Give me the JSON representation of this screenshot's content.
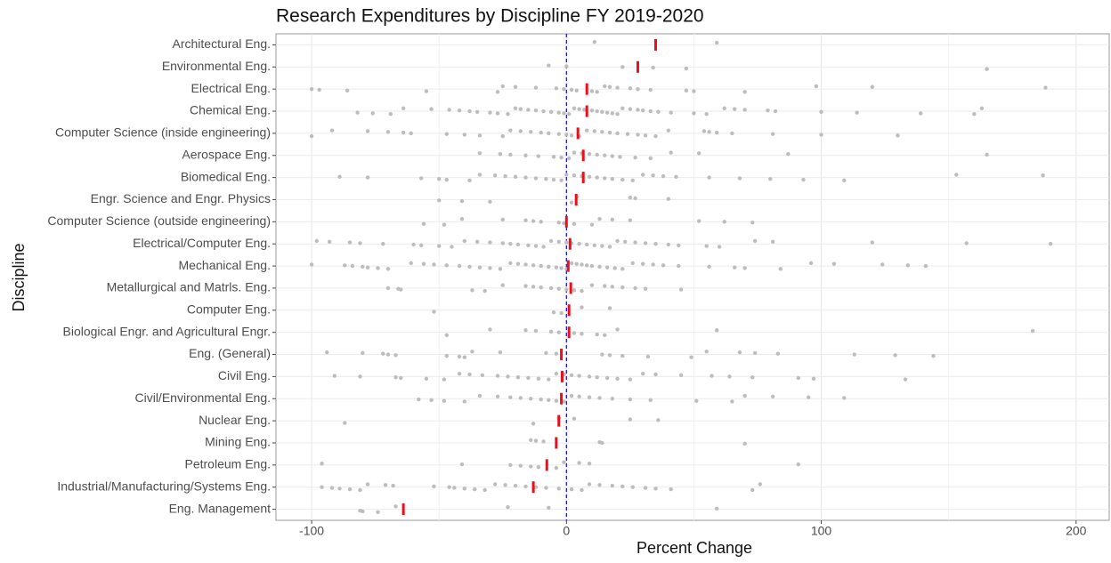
{
  "chart_data": {
    "type": "strip",
    "title": "Research Expenditures by Discipline FY 2019-2020",
    "x_label": "Percent Change",
    "y_label": "Discipline",
    "categories": [
      "Architectural Eng.",
      "Environmental Eng.",
      "Electrical Eng.",
      "Chemical Eng.",
      "Computer Science (inside engineering)",
      "Aerospace Eng.",
      "Biomedical Eng.",
      "Engr. Science and Engr. Physics",
      "Computer Science (outside engineering)",
      "Electrical/Computer Eng.",
      "Mechanical Eng.",
      "Metallurgical and Matrls. Eng.",
      "Computer Eng.",
      "Biological Engr. and Agricultural Engr.",
      "Eng. (General)",
      "Civil Eng.",
      "Civil/Environmental Eng.",
      "Nuclear Eng.",
      "Mining Eng.",
      "Petroleum Eng.",
      "Industrial/Manufacturing/Systems Eng.",
      "Eng. Management"
    ],
    "points": [
      [
        11,
        59
      ],
      [
        -7,
        0,
        22,
        34,
        47,
        165
      ],
      [
        -100,
        -97,
        -86,
        -55,
        -27,
        -25,
        -20,
        -12,
        -4,
        -1,
        2,
        4,
        10,
        12,
        15,
        17,
        20,
        25,
        28,
        33,
        47,
        50,
        70,
        98,
        120,
        188
      ],
      [
        -82,
        -76,
        -69,
        -64,
        -53,
        -46,
        -42,
        -38,
        -35,
        -30,
        -27,
        -23,
        -20,
        -18,
        -15,
        -12,
        -9,
        -6,
        -3,
        -1,
        1,
        3,
        5,
        7,
        10,
        12,
        14,
        16,
        18,
        20,
        22,
        25,
        28,
        30,
        33,
        36,
        41,
        50,
        55,
        62,
        66,
        70,
        79,
        82,
        100,
        114,
        139,
        160,
        163
      ],
      [
        -100,
        -92,
        -78,
        -70,
        -64,
        -61,
        -47,
        -40,
        -34,
        -25,
        -22,
        -18,
        -14,
        -10,
        -7,
        -3,
        0,
        2,
        5,
        8,
        11,
        14,
        17,
        20,
        24,
        28,
        31,
        35,
        40,
        54,
        56,
        59,
        65,
        81,
        100,
        130
      ],
      [
        -34,
        -26,
        -22,
        -16,
        -11,
        -5,
        -2,
        1,
        3,
        6,
        9,
        12,
        15,
        18,
        21,
        27,
        33,
        41,
        52,
        87,
        165
      ],
      [
        -89,
        -78,
        -57,
        -50,
        -47,
        -38,
        -34,
        -28,
        -24,
        -20,
        -16,
        -12,
        -8,
        -5,
        -2,
        0,
        3,
        6,
        9,
        12,
        15,
        18,
        22,
        26,
        30,
        34,
        38,
        43,
        56,
        68,
        80,
        93,
        109,
        153,
        187
      ],
      [
        -50,
        -41,
        -30,
        2,
        4,
        25,
        27,
        40
      ],
      [
        -56,
        -48,
        -41,
        -25,
        -16,
        -13,
        -10,
        -3,
        -1,
        3,
        10,
        13,
        18,
        25,
        52,
        62,
        73
      ],
      [
        -98,
        -93,
        -85,
        -81,
        -72,
        -60,
        -57,
        -50,
        -45,
        -40,
        -35,
        -30,
        -25,
        -22,
        -19,
        -15,
        -12,
        -9,
        -6,
        -3,
        0,
        2,
        5,
        8,
        11,
        14,
        17,
        20,
        23,
        27,
        31,
        35,
        40,
        44,
        55,
        60,
        74,
        81,
        120,
        157,
        190
      ],
      [
        -100,
        -87,
        -84,
        -80,
        -78,
        -74,
        -70,
        -61,
        -56,
        -52,
        -47,
        -42,
        -38,
        -34,
        -30,
        -26,
        -22,
        -19,
        -16,
        -13,
        -10,
        -7,
        -4,
        -2,
        0,
        2,
        4,
        6,
        8,
        10,
        13,
        16,
        19,
        22,
        26,
        30,
        34,
        38,
        44,
        56,
        66,
        70,
        84,
        96,
        105,
        124,
        134,
        141
      ],
      [
        -70,
        -66,
        -65,
        -37,
        -32,
        -25,
        -16,
        -13,
        -10,
        -6,
        -3,
        0,
        3,
        6,
        10,
        15,
        18,
        22,
        27,
        31,
        45
      ],
      [
        -52,
        -5,
        -2,
        6,
        17
      ],
      [
        -47,
        -30,
        -16,
        -12,
        -6,
        -3,
        3,
        6,
        12,
        15,
        20,
        59,
        183
      ],
      [
        -94,
        -80,
        -72,
        -70,
        -67,
        -47,
        -42,
        -40,
        -37,
        -26,
        -8,
        -4,
        14,
        17,
        22,
        32,
        49,
        55,
        68,
        74,
        83,
        113,
        129,
        144
      ],
      [
        -91,
        -81,
        -67,
        -65,
        -55,
        -48,
        -42,
        -38,
        -33,
        -27,
        -23,
        -19,
        -15,
        -11,
        -7,
        -4,
        -1,
        2,
        5,
        9,
        12,
        16,
        20,
        25,
        30,
        35,
        45,
        57,
        64,
        73,
        91,
        97,
        133
      ],
      [
        -58,
        -53,
        -48,
        -40,
        -34,
        -27,
        -22,
        -18,
        -14,
        -10,
        -7,
        -4,
        -1,
        2,
        5,
        9,
        13,
        18,
        25,
        33,
        51,
        65,
        70,
        81,
        95,
        109
      ],
      [
        -87,
        -13,
        -3,
        3,
        25,
        36
      ],
      [
        -14,
        -12,
        -9,
        13,
        14,
        70
      ],
      [
        -96,
        -41,
        -22,
        -18,
        -14,
        -11,
        -4,
        -1,
        5,
        9,
        91
      ],
      [
        -96,
        -92,
        -89,
        -85,
        -81,
        -78,
        -71,
        -68,
        -52,
        -46,
        -44,
        -40,
        -36,
        -32,
        -28,
        -24,
        -20,
        -16,
        -12,
        -8,
        -3,
        2,
        6,
        9,
        13,
        18,
        22,
        26,
        31,
        35,
        41,
        73,
        76
      ],
      [
        -81,
        -80,
        -74,
        -67,
        -23,
        -7,
        59
      ]
    ],
    "medians": [
      35,
      28,
      8,
      8,
      4.5,
      6.6,
      6.6,
      3.8,
      0,
      1.4,
      0.7,
      1.7,
      1,
      1,
      -2,
      -1.7,
      -2,
      -3,
      -4,
      -7.7,
      -13,
      -64
    ],
    "point_color": "#bdbdbd",
    "median_color": "#e8101a",
    "ref_line": {
      "value": 0,
      "color": "#1a1adb"
    },
    "xlim": [
      -114,
      213
    ],
    "xticks": [
      -100,
      0,
      100,
      200
    ],
    "grid": true
  }
}
